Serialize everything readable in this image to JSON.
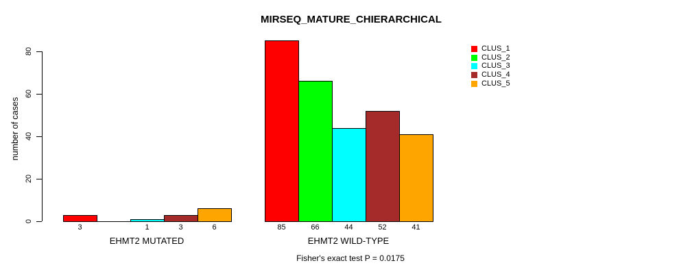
{
  "chart_data": {
    "type": "bar",
    "title": "MIRSEQ_MATURE_CHIERARCHICAL",
    "xlabel": "",
    "ylabel": "number of cases",
    "ylim": [
      0,
      85
    ],
    "yticks": [
      0,
      20,
      40,
      60,
      80
    ],
    "grid": false,
    "legend_position": "right",
    "annotation": "Fisher's exact test P = 0.0175",
    "series": [
      {
        "name": "CLUS_1",
        "color": "#ff0000"
      },
      {
        "name": "CLUS_2",
        "color": "#00ff00"
      },
      {
        "name": "CLUS_3",
        "color": "#00ffff"
      },
      {
        "name": "CLUS_4",
        "color": "#a52a2a"
      },
      {
        "name": "CLUS_5",
        "color": "#ffa500"
      }
    ],
    "groups": [
      {
        "label": "EHMT2 MUTATED",
        "values": [
          3,
          0,
          1,
          3,
          6
        ]
      },
      {
        "label": "EHMT2 WILD-TYPE",
        "values": [
          85,
          66,
          44,
          52,
          41
        ]
      }
    ],
    "notes": "bar value labels shown under each bar; zero-value bars have no label"
  }
}
